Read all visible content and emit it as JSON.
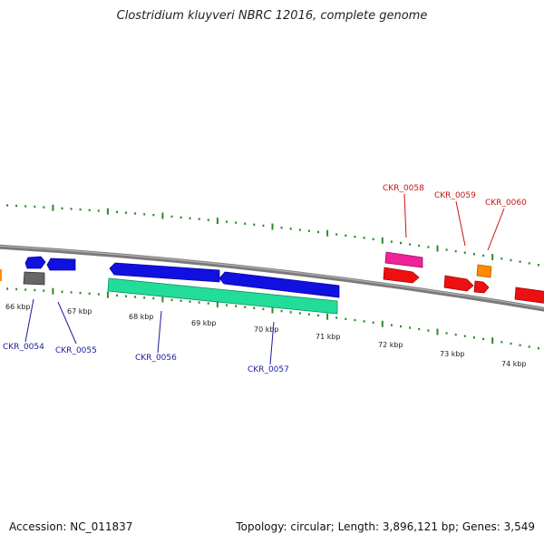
{
  "title": "Clostridium kluyveri NBRC 12016, complete genome",
  "footer": {
    "accession": "Accession: NC_011837",
    "stats": "Topology: circular; Length: 3,896,121 bp; Genes: 3,549"
  },
  "colors": {
    "backbone": "#7a7a7a",
    "tick": "#2d8a2d",
    "blue_gene": "#1010e0",
    "teal_gene": "#22dd99",
    "red_gene": "#ee1010",
    "pink_gene": "#ee2299",
    "orange_gene": "#ff8c00",
    "grey_gene": "#666666",
    "blue_label": "#1a1aa0",
    "red_label": "#cc1111"
  },
  "tick_labels": [
    "66 kbp",
    "67 kbp",
    "68 kbp",
    "69 kbp",
    "70 kbp",
    "71 kbp",
    "72 kbp",
    "73 kbp",
    "74 kbp"
  ],
  "gene_labels": {
    "bottom": [
      "CKR_0054",
      "CKR_0055",
      "CKR_0056",
      "CKR_0057"
    ],
    "top": [
      "CKR_0058",
      "CKR_0059",
      "CKR_0060"
    ]
  }
}
